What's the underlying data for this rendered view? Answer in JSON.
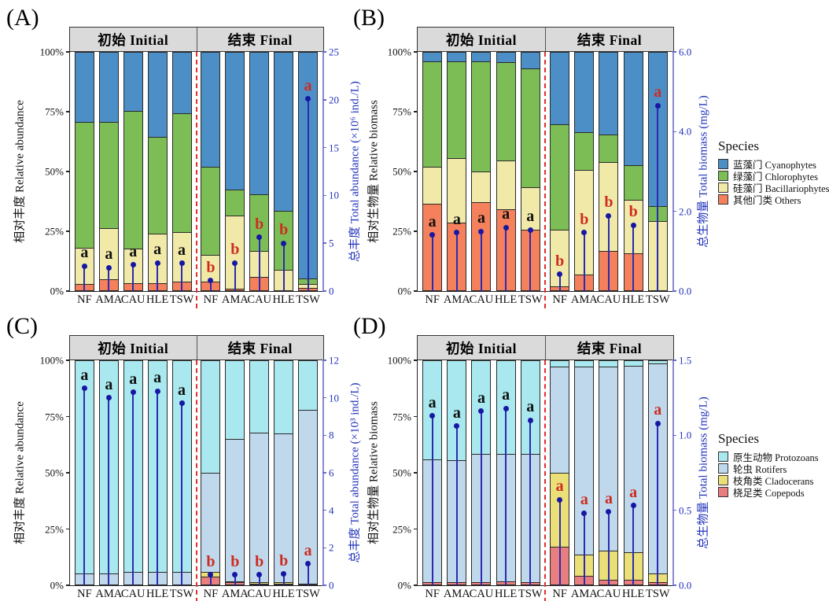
{
  "legends": [
    {
      "title": "Species",
      "items": [
        {
          "label": "蓝藻门 Cyanophytes",
          "color": "#4C8FC6"
        },
        {
          "label": "绿藻门 Chlorophytes",
          "color": "#7CBE55"
        },
        {
          "label": "硅藻门 Bacillariophytes",
          "color": "#F0E9A8"
        },
        {
          "label": "其他门类 Others",
          "color": "#F5815C"
        }
      ]
    },
    {
      "title": "Species",
      "items": [
        {
          "label": "原生动物 Protozoans",
          "color": "#A8E8EE"
        },
        {
          "label": "轮虫 Rotifers",
          "color": "#BFD8EB"
        },
        {
          "label": "枝角类 Cladocerans",
          "color": "#EBDF78"
        },
        {
          "label": "桡足类 Copepods",
          "color": "#E97E7E"
        }
      ]
    }
  ],
  "chart_data": [
    {
      "panel": "(A)",
      "type": "bar",
      "stacked": true,
      "facets": [
        "初始 Initial",
        "结束 Final"
      ],
      "categories": [
        "NF",
        "AMA",
        "CAU",
        "HLE",
        "TSW"
      ],
      "left_axis": {
        "label": "相对丰度 Relative abundance",
        "ticks": [
          "100%",
          "75%",
          "50%",
          "25%",
          "0%"
        ]
      },
      "right_axis": {
        "label": "总丰度 Total abundance (×10⁶ ind./L)",
        "ticks": [
          "25",
          "20",
          "15",
          "10",
          "5",
          "0"
        ],
        "max": 25
      },
      "series": [
        {
          "name": "其他门类 Others",
          "color": "#F5815C",
          "initial": [
            2.5,
            4.5,
            3,
            3,
            3.5
          ],
          "final": [
            3.5,
            0.5,
            5.5,
            0,
            1
          ]
        },
        {
          "name": "硅藻门 Bacillariophytes",
          "color": "#F0E9A8",
          "initial": [
            15.5,
            21.5,
            14.5,
            21,
            21
          ],
          "final": [
            11.5,
            31,
            11,
            8.5,
            1.5
          ]
        },
        {
          "name": "绿藻门 Chlorophytes",
          "color": "#7CBE55",
          "initial": [
            53,
            45,
            58,
            40.5,
            50
          ],
          "final": [
            37,
            11,
            24,
            25,
            2.5
          ]
        },
        {
          "name": "蓝藻门 Cyanophytes",
          "color": "#4C8FC6",
          "initial": [
            29,
            29,
            24.5,
            35.5,
            25.5
          ],
          "final": [
            48,
            57.5,
            59.5,
            66.5,
            95
          ]
        }
      ],
      "lollipop": {
        "initial": {
          "values": [
            2.6,
            2.45,
            2.75,
            2.95,
            2.9
          ],
          "letters": [
            "a",
            "a",
            "a",
            "a",
            "a"
          ],
          "letter_color": "#111111"
        },
        "final": {
          "values": [
            1.1,
            2.95,
            5.6,
            5.0,
            20.1
          ],
          "letters": [
            "b",
            "b",
            "b",
            "b",
            "a"
          ],
          "letter_color": "#CE2B20"
        }
      }
    },
    {
      "panel": "(B)",
      "type": "bar",
      "stacked": true,
      "facets": [
        "初始 Initial",
        "结束 Final"
      ],
      "categories": [
        "NF",
        "AMA",
        "CAU",
        "HLE",
        "TSW"
      ],
      "left_axis": {
        "label": "相对生物量 Relative biomass",
        "ticks": [
          "100%",
          "75%",
          "50%",
          "25%",
          "0%"
        ]
      },
      "right_axis": {
        "label": "总生物量 Total biomass (mg/L)",
        "ticks": [
          "6.0",
          "4.0",
          "2.0",
          "0.0"
        ],
        "max": 6
      },
      "series": [
        {
          "name": "其他门类 Others",
          "color": "#F5815C",
          "initial": [
            36.5,
            28.5,
            37,
            34,
            25.5
          ],
          "final": [
            1.5,
            6.5,
            16.5,
            15.5,
            0
          ]
        },
        {
          "name": "硅藻门 Bacillariophytes",
          "color": "#F0E9A8",
          "initial": [
            15.5,
            27,
            13,
            20.5,
            18
          ],
          "final": [
            24,
            44,
            37.5,
            22.5,
            29
          ]
        },
        {
          "name": "绿藻门 Chlorophytes",
          "color": "#7CBE55",
          "initial": [
            44.5,
            41,
            46.5,
            41.5,
            50
          ],
          "final": [
            44.5,
            16,
            11.5,
            14.5,
            6.5
          ]
        },
        {
          "name": "蓝藻门 Cyanophytes",
          "color": "#4C8FC6",
          "initial": [
            3.5,
            3.5,
            3.5,
            4,
            6.5
          ],
          "final": [
            30,
            33.5,
            34.5,
            47.5,
            64.5
          ]
        }
      ],
      "lollipop": {
        "initial": {
          "values": [
            1.41,
            1.47,
            1.5,
            1.59,
            1.53
          ],
          "letters": [
            "a",
            "a",
            "a",
            "a",
            "a"
          ],
          "letter_color": "#111111"
        },
        "final": {
          "values": [
            0.42,
            1.47,
            1.89,
            1.65,
            4.65
          ],
          "letters": [
            "b",
            "b",
            "b",
            "b",
            "a"
          ],
          "letter_color": "#CE2B20"
        }
      }
    },
    {
      "panel": "(C)",
      "type": "bar",
      "stacked": true,
      "facets": [
        "初始 Initial",
        "结束 Final"
      ],
      "categories": [
        "NF",
        "AMA",
        "CAU",
        "HLE",
        "TSW"
      ],
      "left_axis": {
        "label": "相对丰度 Relative abundance",
        "ticks": [
          "100%",
          "75%",
          "50%",
          "25%",
          "0%"
        ]
      },
      "right_axis": {
        "label": "总丰度 Total abundance (×10³ ind./L)",
        "ticks": [
          "12",
          "10",
          "8",
          "6",
          "4",
          "2",
          "0"
        ],
        "max": 12
      },
      "series": [
        {
          "name": "桡足类 Copepods",
          "color": "#E97E7E",
          "initial": [
            0,
            0,
            0,
            0,
            0
          ],
          "final": [
            3.5,
            1,
            0.5,
            0.5,
            0
          ]
        },
        {
          "name": "枝角类 Cladocerans",
          "color": "#EBDF78",
          "initial": [
            0,
            0,
            0,
            0,
            0
          ],
          "final": [
            2,
            0.5,
            0.5,
            0.5,
            0.5
          ]
        },
        {
          "name": "轮虫 Rotifers",
          "color": "#BFD8EB",
          "initial": [
            5,
            5,
            5.5,
            5.5,
            5.5
          ],
          "final": [
            44.5,
            63.5,
            67,
            66.5,
            77.5
          ]
        },
        {
          "name": "原生动物 Protozoans",
          "color": "#A8E8EE",
          "initial": [
            95,
            95,
            94.5,
            94.5,
            94.5
          ],
          "final": [
            50,
            35,
            32,
            32.5,
            22
          ]
        }
      ],
      "lollipop": {
        "initial": {
          "values": [
            10.5,
            10.0,
            10.3,
            10.35,
            9.7
          ],
          "letters": [
            "a",
            "a",
            "a",
            "a",
            "a"
          ],
          "letter_color": "#111111"
        },
        "final": {
          "values": [
            0.55,
            0.55,
            0.55,
            0.6,
            1.15
          ],
          "letters": [
            "b",
            "b",
            "b",
            "b",
            "a"
          ],
          "letter_color": "#CE2B20"
        }
      }
    },
    {
      "panel": "(D)",
      "type": "bar",
      "stacked": true,
      "facets": [
        "初始 Initial",
        "结束 Final"
      ],
      "categories": [
        "NF",
        "AMA",
        "CAU",
        "HLE",
        "TSW"
      ],
      "left_axis": {
        "label": "相对生物量 Relative biomass",
        "ticks": [
          "100%",
          "75%",
          "50%",
          "25%",
          "0%"
        ]
      },
      "right_axis": {
        "label": "总生物量 Total biomass (mg/L)",
        "ticks": [
          "1.5",
          "1.0",
          "0.5",
          "0.0"
        ],
        "max": 1.5
      },
      "series": [
        {
          "name": "桡足类 Copepods",
          "color": "#E97E7E",
          "initial": [
            1,
            1,
            1,
            1.5,
            1
          ],
          "final": [
            17,
            4,
            2,
            2,
            1
          ]
        },
        {
          "name": "枝角类 Cladocerans",
          "color": "#EBDF78",
          "initial": [
            0,
            0,
            0,
            0,
            0
          ],
          "final": [
            33,
            9.5,
            13,
            12.5,
            4
          ]
        },
        {
          "name": "轮虫 Rotifers",
          "color": "#BFD8EB",
          "initial": [
            55,
            54.5,
            57.5,
            57,
            57.5
          ],
          "final": [
            47.5,
            84,
            82.5,
            83.5,
            94
          ]
        },
        {
          "name": "原生动物 Protozoans",
          "color": "#A8E8EE",
          "initial": [
            44,
            44.5,
            41.5,
            41.5,
            41.5
          ],
          "final": [
            2.5,
            2.5,
            2.5,
            2,
            1
          ]
        }
      ],
      "lollipop": {
        "initial": {
          "values": [
            1.13,
            1.06,
            1.16,
            1.18,
            1.1
          ],
          "letters": [
            "a",
            "a",
            "a",
            "a",
            "a"
          ],
          "letter_color": "#111111"
        },
        "final": {
          "values": [
            0.57,
            0.48,
            0.49,
            0.53,
            1.08
          ],
          "letters": [
            "a",
            "a",
            "a",
            "a",
            "a"
          ],
          "letter_color": "#CE2B20"
        }
      }
    }
  ]
}
